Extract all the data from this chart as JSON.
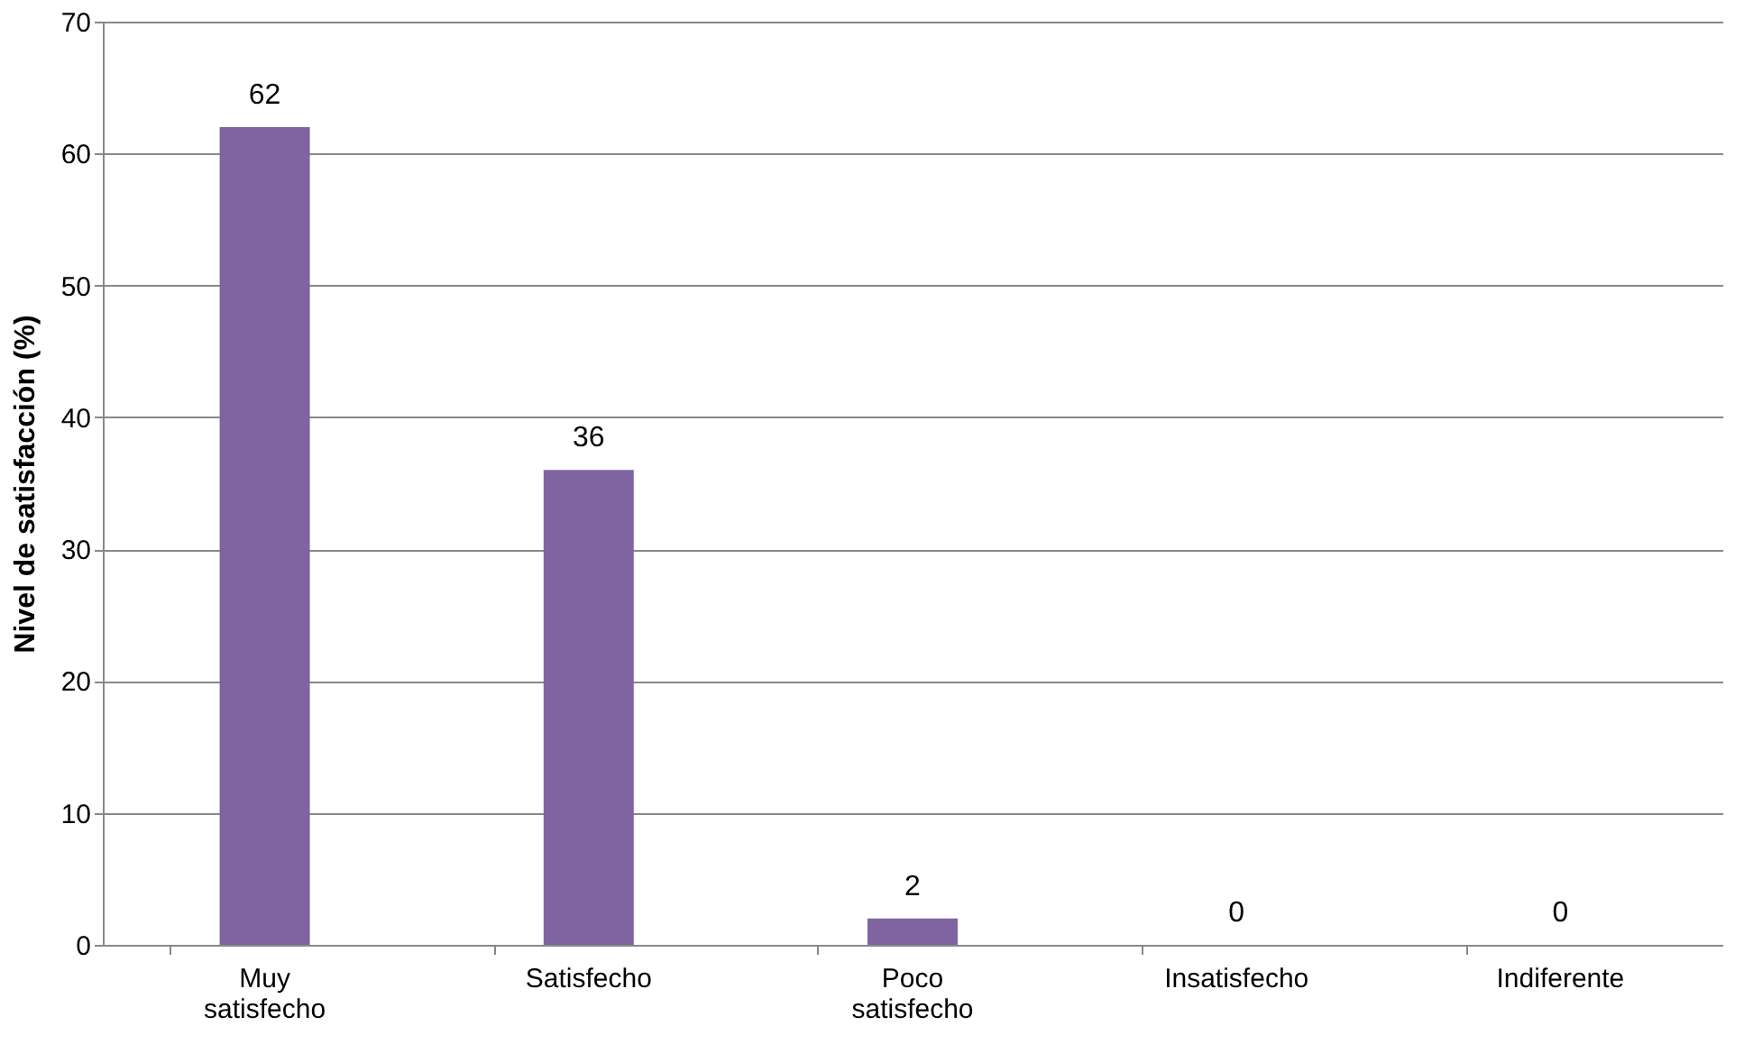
{
  "chart_data": {
    "type": "bar",
    "ylabel": "Nivel de satisfacción (%)",
    "categories": [
      "Muy satisfecho",
      "Satisfecho",
      "Poco satisfecho",
      "Insatisfecho",
      "Indiferente"
    ],
    "values": [
      62,
      36,
      2,
      0,
      0
    ],
    "color": "#8064a2",
    "ylim": [
      0,
      70
    ],
    "yticks": [
      0,
      10,
      20,
      30,
      40,
      50,
      60,
      70
    ],
    "grid": "y",
    "data_labels": true
  }
}
